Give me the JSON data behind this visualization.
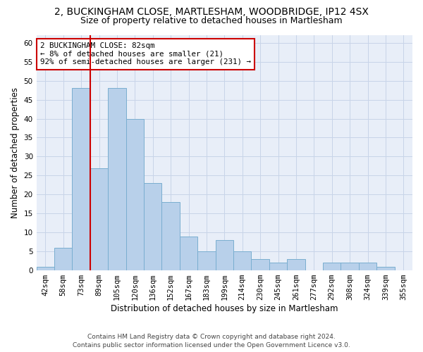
{
  "title_line1": "2, BUCKINGHAM CLOSE, MARTLESHAM, WOODBRIDGE, IP12 4SX",
  "title_line2": "Size of property relative to detached houses in Martlesham",
  "xlabel": "Distribution of detached houses by size in Martlesham",
  "ylabel": "Number of detached properties",
  "categories": [
    "42sqm",
    "58sqm",
    "73sqm",
    "89sqm",
    "105sqm",
    "120sqm",
    "136sqm",
    "152sqm",
    "167sqm",
    "183sqm",
    "199sqm",
    "214sqm",
    "230sqm",
    "245sqm",
    "261sqm",
    "277sqm",
    "292sqm",
    "308sqm",
    "324sqm",
    "339sqm",
    "355sqm"
  ],
  "values": [
    1,
    6,
    48,
    27,
    48,
    40,
    23,
    18,
    9,
    5,
    8,
    5,
    3,
    2,
    3,
    0,
    2,
    2,
    2,
    1,
    0
  ],
  "bar_color": "#b8d0ea",
  "bar_edge_color": "#7aaed0",
  "vline_x_index": 2,
  "vline_color": "#cc0000",
  "annotation_text": "2 BUCKINGHAM CLOSE: 82sqm\n← 8% of detached houses are smaller (21)\n92% of semi-detached houses are larger (231) →",
  "annotation_box_color": "#ffffff",
  "annotation_box_edge_color": "#cc0000",
  "ylim": [
    0,
    62
  ],
  "yticks": [
    0,
    5,
    10,
    15,
    20,
    25,
    30,
    35,
    40,
    45,
    50,
    55,
    60
  ],
  "grid_color": "#c8d4e8",
  "background_color": "#e8eef8",
  "footer_line1": "Contains HM Land Registry data © Crown copyright and database right 2024.",
  "footer_line2": "Contains public sector information licensed under the Open Government Licence v3.0.",
  "title_fontsize": 10,
  "subtitle_fontsize": 9,
  "tick_fontsize": 7.5,
  "label_fontsize": 8.5,
  "annotation_fontsize": 7.8,
  "footer_fontsize": 6.5
}
